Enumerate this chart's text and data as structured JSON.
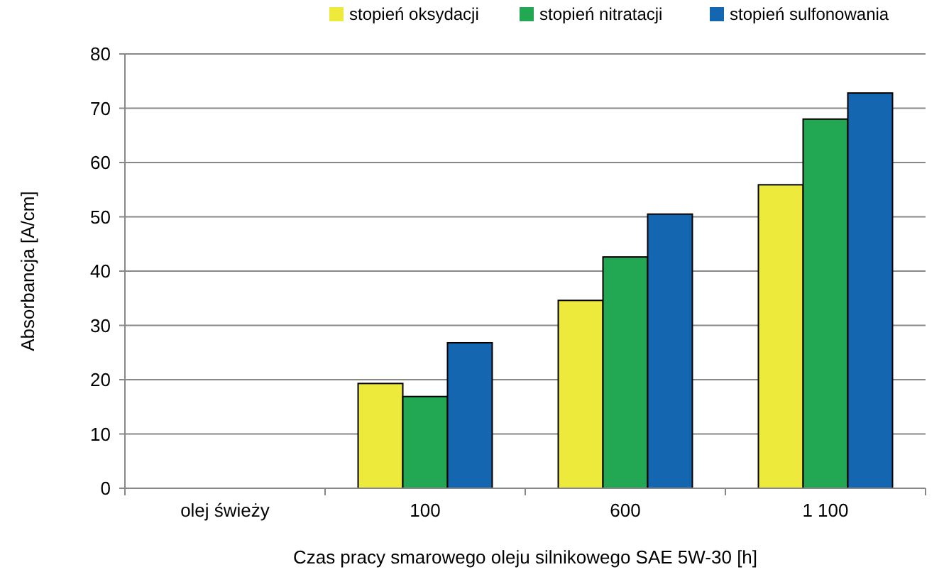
{
  "chart_data": {
    "type": "bar",
    "xlabel": "Czas pracy smarowego oleju silnikowego SAE 5W-30 [h]",
    "ylabel": "Absorbancja [A/cm]",
    "categories": [
      "olej świeży",
      "100",
      "600",
      "1 100"
    ],
    "series": [
      {
        "name": "stopień oksydacji",
        "color": "#eeea3c",
        "values": [
          null,
          19.3,
          34.6,
          55.9
        ]
      },
      {
        "name": "stopień nitratacji",
        "color": "#22a752",
        "values": [
          null,
          16.9,
          42.6,
          68
        ]
      },
      {
        "name": "stopień sulfonowania",
        "color": "#1566b0",
        "values": [
          null,
          26.8,
          50.5,
          72.8
        ]
      }
    ],
    "ylim": [
      0,
      80
    ],
    "yticks": [
      0,
      10,
      20,
      30,
      40,
      50,
      60,
      70,
      80
    ],
    "grid": "y",
    "legend": "top"
  }
}
